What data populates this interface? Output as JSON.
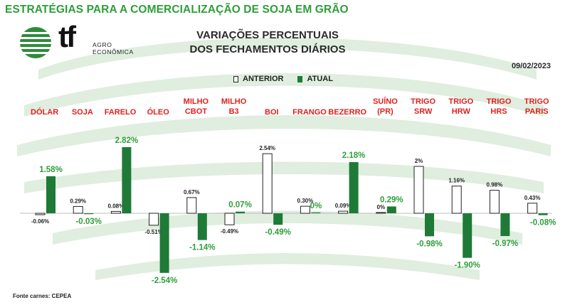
{
  "page_title": "ESTRATÉGIAS PARA A COMERCIALIZAÇÃO DE SOJA EM GRÃO",
  "logo": {
    "mark": "tf",
    "line1": "AGRO",
    "line2": "ECONÔMICA"
  },
  "colors": {
    "title_green": "#2e9e3a",
    "bar_atual": "#1f7a37",
    "label_atual": "#2e9e3a",
    "category_red": "#e0201c",
    "wave_green": "#dfeede"
  },
  "chart_data": {
    "type": "bar",
    "title_line1": "VARIAÇÕES PERCENTUAIS",
    "title_line2": "DOS FECHAMENTOS DIÁRIOS",
    "date": "09/02/2023",
    "legend": [
      "ANTERIOR",
      "ATUAL"
    ],
    "categories": [
      [
        "DÓLAR"
      ],
      [
        "SOJA"
      ],
      [
        "FARELO"
      ],
      [
        "ÓLEO"
      ],
      [
        "MILHO",
        "CBOT"
      ],
      [
        "MILHO",
        "B3"
      ],
      [
        "BOI"
      ],
      [
        "FRANGO"
      ],
      [
        "BEZERRO"
      ],
      [
        "SUÍNO",
        "(PR)"
      ],
      [
        "TRIGO",
        "SRW"
      ],
      [
        "TRIGO",
        "HRW"
      ],
      [
        "TRIGO",
        "HRS"
      ],
      [
        "TRIGO",
        "PARIS"
      ]
    ],
    "series": [
      {
        "name": "ANTERIOR",
        "values": [
          -0.06,
          0.29,
          0.08,
          -0.51,
          0.67,
          -0.49,
          2.54,
          0.3,
          0.09,
          0,
          2,
          1.16,
          0.98,
          0.43
        ],
        "labels": [
          "-0.06%",
          "0.29%",
          "0.08%",
          "-0.51%",
          "0.67%",
          "-0.49%",
          "2.54%",
          "0.30%",
          "0.09%",
          "0%",
          "2%",
          "1.16%",
          "0.98%",
          "0.43%"
        ]
      },
      {
        "name": "ATUAL",
        "values": [
          1.58,
          -0.03,
          2.82,
          -2.54,
          -1.14,
          0.07,
          -0.49,
          0,
          2.18,
          0.29,
          -0.98,
          -1.9,
          -0.97,
          -0.08
        ],
        "labels": [
          "1.58%",
          "-0.03%",
          "2.82%",
          "-2.54%",
          "-1.14%",
          "0.07%",
          "-0.49%",
          "0%",
          "2.18%",
          "0.29%",
          "-0.98%",
          "-1.90%",
          "-0.97%",
          "-0.08%"
        ]
      }
    ],
    "grid": false
  },
  "source": "Fonte carnes: CEPEA"
}
